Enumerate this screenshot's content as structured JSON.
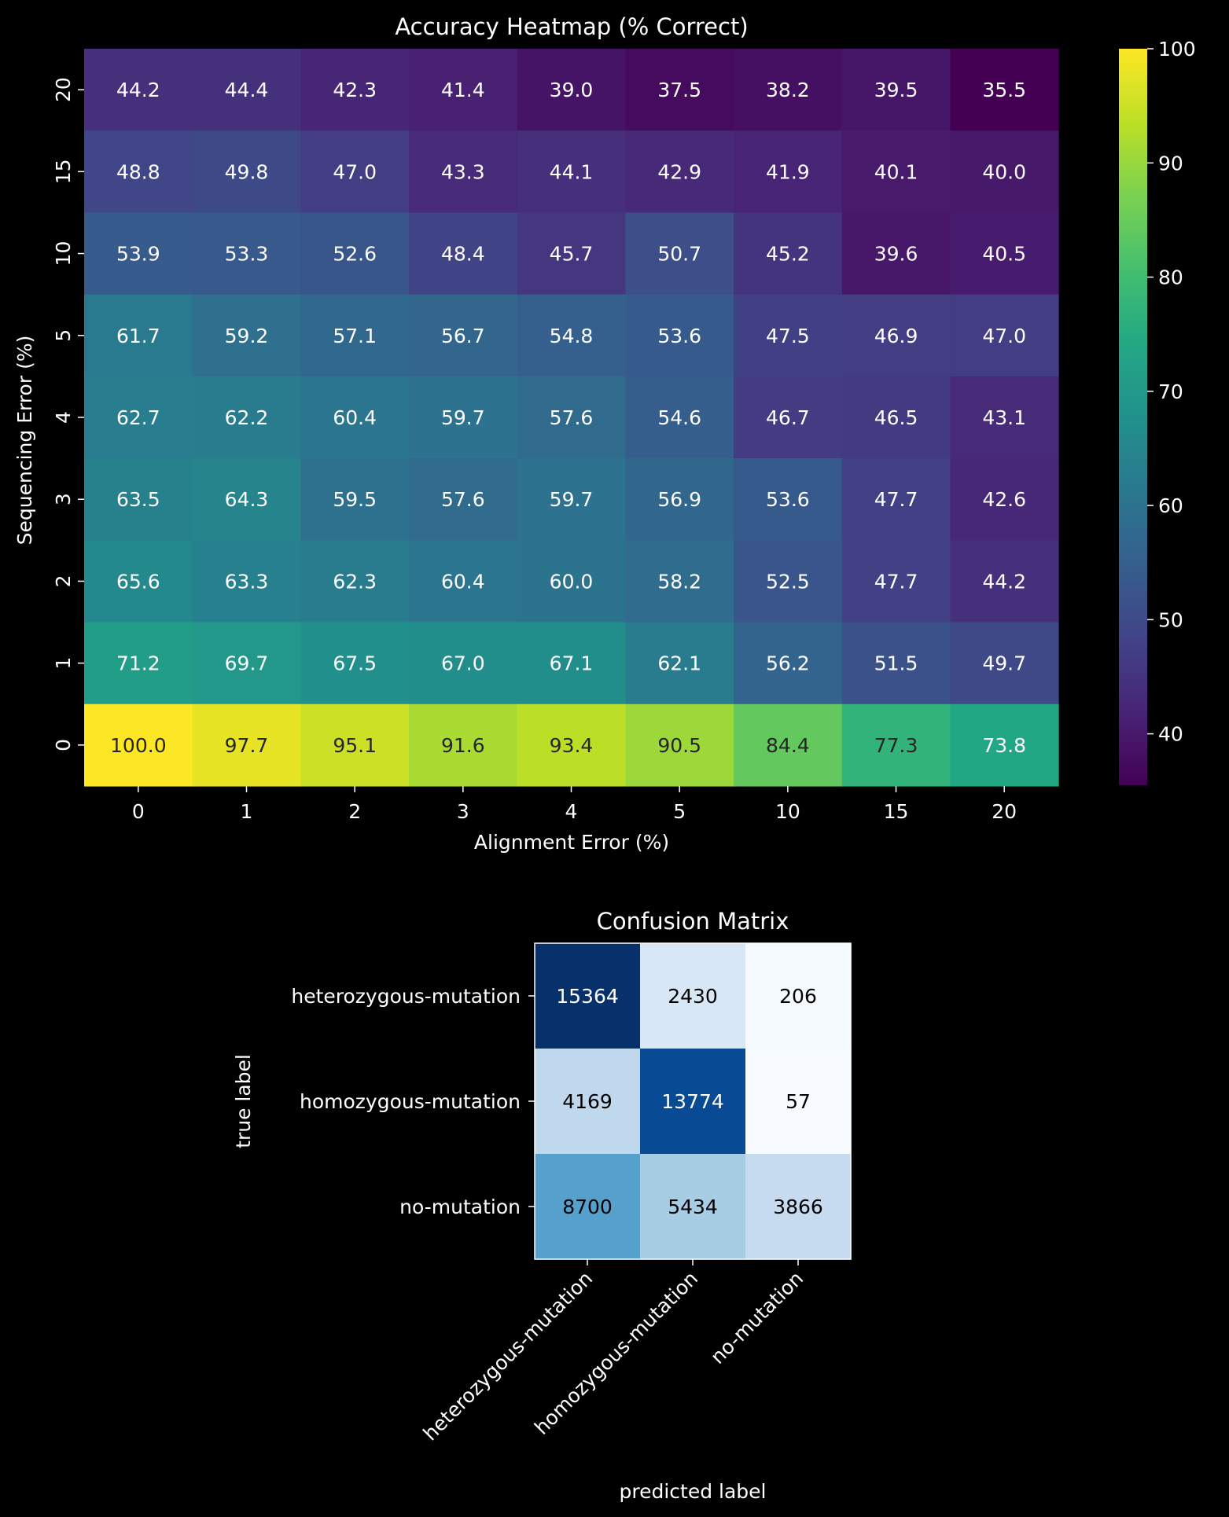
{
  "chart_data": [
    {
      "type": "heatmap",
      "title": "Accuracy Heatmap (% Correct)",
      "xlabel": "Alignment Error (%)",
      "ylabel": "Sequencing Error (%)",
      "x_categories": [
        "0",
        "1",
        "2",
        "3",
        "4",
        "5",
        "10",
        "15",
        "20"
      ],
      "y_categories": [
        "20",
        "15",
        "10",
        "5",
        "4",
        "3",
        "2",
        "1",
        "0"
      ],
      "values": [
        [
          44.2,
          44.4,
          42.3,
          41.4,
          39.0,
          37.5,
          38.2,
          39.5,
          35.5
        ],
        [
          48.8,
          49.8,
          47.0,
          43.3,
          44.1,
          42.9,
          41.9,
          40.1,
          40.0
        ],
        [
          53.9,
          53.3,
          52.6,
          48.4,
          45.7,
          50.7,
          45.2,
          39.6,
          40.5
        ],
        [
          61.7,
          59.2,
          57.1,
          56.7,
          54.8,
          53.6,
          47.5,
          46.9,
          47.0
        ],
        [
          62.7,
          62.2,
          60.4,
          59.7,
          57.6,
          54.6,
          46.7,
          46.5,
          43.1
        ],
        [
          63.5,
          64.3,
          59.5,
          57.6,
          59.7,
          56.9,
          53.6,
          47.7,
          42.6
        ],
        [
          65.6,
          63.3,
          62.3,
          60.4,
          60.0,
          58.2,
          52.5,
          47.7,
          44.2
        ],
        [
          71.2,
          69.7,
          67.5,
          67.0,
          67.1,
          62.1,
          56.2,
          51.5,
          49.7
        ],
        [
          100.0,
          97.7,
          95.1,
          91.6,
          93.4,
          90.5,
          84.4,
          77.3,
          73.8
        ]
      ],
      "colormap": "viridis",
      "colorbar_range": [
        35.5,
        100.0
      ],
      "colorbar_ticks": [
        40,
        50,
        60,
        70,
        80,
        90,
        100
      ],
      "value_format": "1 decimal"
    },
    {
      "type": "heatmap",
      "title": "Confusion Matrix",
      "xlabel": "predicted label",
      "ylabel": "true label",
      "x_categories": [
        "heterozygous-mutation",
        "homozygous-mutation",
        "no-mutation"
      ],
      "y_categories": [
        "heterozygous-mutation",
        "homozygous-mutation",
        "no-mutation"
      ],
      "values": [
        [
          15364,
          2430,
          206
        ],
        [
          4169,
          13774,
          57
        ],
        [
          8700,
          5434,
          3866
        ]
      ],
      "colormap": "Blues",
      "color_range": [
        57,
        15364
      ],
      "value_format": "integer"
    }
  ]
}
